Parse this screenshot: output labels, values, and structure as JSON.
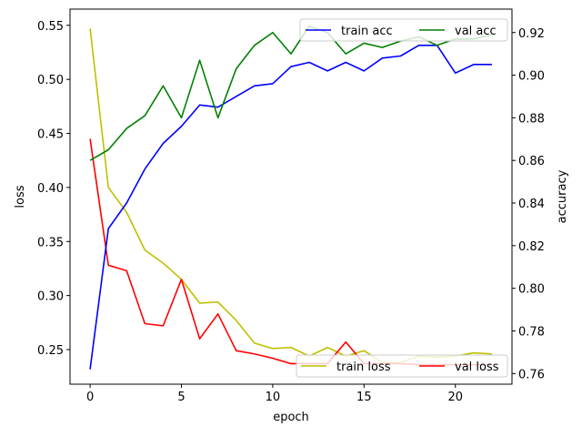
{
  "chart_data": {
    "type": "line",
    "title": "",
    "x": [
      0,
      1,
      2,
      3,
      4,
      5,
      6,
      7,
      8,
      9,
      10,
      11,
      12,
      13,
      14,
      15,
      16,
      17,
      18,
      19,
      20,
      21,
      22
    ],
    "xlabel": "epoch",
    "xlim": [
      -1.1,
      23.1
    ],
    "xticks": [
      "0",
      "5",
      "10",
      "15",
      "20"
    ],
    "left_axis": {
      "label": "loss",
      "ylim": [
        0.218,
        0.565
      ],
      "ticks": [
        "0.25",
        "0.30",
        "0.35",
        "0.40",
        "0.45",
        "0.50",
        "0.55"
      ],
      "series": [
        {
          "name": "train loss",
          "color": "#bfbf00",
          "values": [
            0.547,
            0.4,
            0.377,
            0.342,
            0.33,
            0.315,
            0.293,
            0.294,
            0.277,
            0.256,
            0.251,
            0.252,
            0.244,
            0.252,
            0.244,
            0.249,
            0.238,
            0.238,
            0.244,
            0.243,
            0.244,
            0.247,
            0.246
          ]
        },
        {
          "name": "val loss",
          "color": "#ff0000",
          "values": [
            0.445,
            0.328,
            0.323,
            0.274,
            0.272,
            0.315,
            0.26,
            0.283,
            0.249,
            0.246,
            0.242,
            0.237,
            0.237,
            0.237,
            0.257,
            0.237,
            0.237,
            0.237,
            0.236,
            0.236,
            0.236,
            0.236,
            0.236
          ]
        }
      ]
    },
    "right_axis": {
      "label": "accuracy",
      "ylim": [
        0.755,
        0.931
      ],
      "ticks": [
        "0.76",
        "0.78",
        "0.80",
        "0.82",
        "0.84",
        "0.86",
        "0.88",
        "0.90",
        "0.92"
      ],
      "series": [
        {
          "name": "train acc",
          "color": "#0000ff",
          "values": [
            0.762,
            0.828,
            0.84,
            0.856,
            0.868,
            0.876,
            0.886,
            0.885,
            0.89,
            0.895,
            0.896,
            0.904,
            0.906,
            0.902,
            0.906,
            0.902,
            0.908,
            0.909,
            0.914,
            0.914,
            0.901,
            0.905,
            0.905
          ]
        },
        {
          "name": "val acc",
          "color": "#008000",
          "values": [
            0.86,
            0.865,
            0.875,
            0.881,
            0.895,
            0.88,
            0.907,
            0.88,
            0.903,
            0.914,
            0.92,
            0.91,
            0.923,
            0.92,
            0.91,
            0.915,
            0.913,
            0.916,
            0.918,
            0.914,
            0.917,
            0.917,
            0.919
          ]
        }
      ]
    },
    "legends": {
      "accuracy": {
        "placement": "upper-right",
        "entries": [
          "train acc",
          "val acc"
        ]
      },
      "loss": {
        "placement": "lower-right",
        "entries": [
          "train loss",
          "val loss"
        ]
      }
    },
    "grid": false
  }
}
